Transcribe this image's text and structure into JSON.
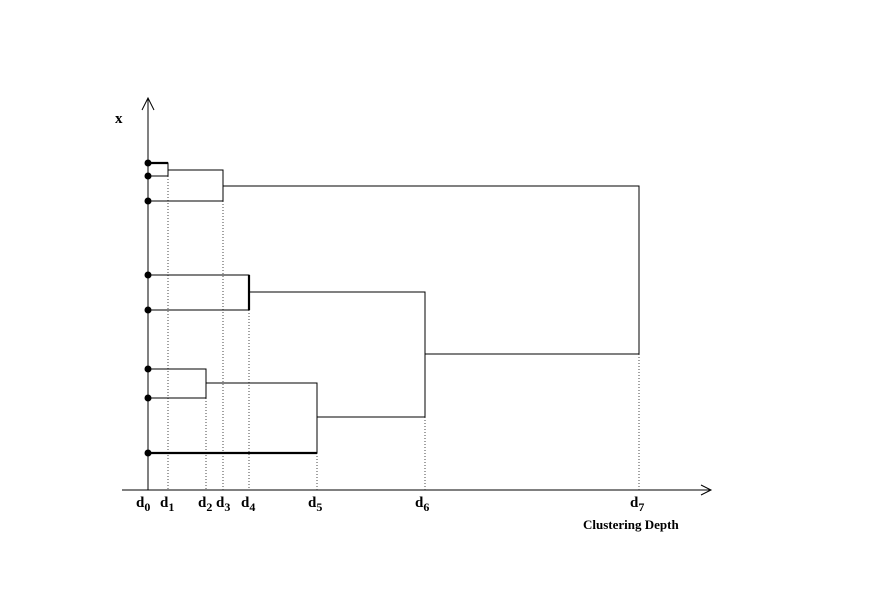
{
  "axes": {
    "y_label": "x",
    "x_label": "Clustering Depth"
  },
  "ticks": [
    {
      "base": "d",
      "sub": "0"
    },
    {
      "base": "d",
      "sub": "1"
    },
    {
      "base": "d",
      "sub": "2"
    },
    {
      "base": "d",
      "sub": "3"
    },
    {
      "base": "d",
      "sub": "4"
    },
    {
      "base": "d",
      "sub": "5"
    },
    {
      "base": "d",
      "sub": "6"
    },
    {
      "base": "d",
      "sub": "7"
    }
  ]
}
